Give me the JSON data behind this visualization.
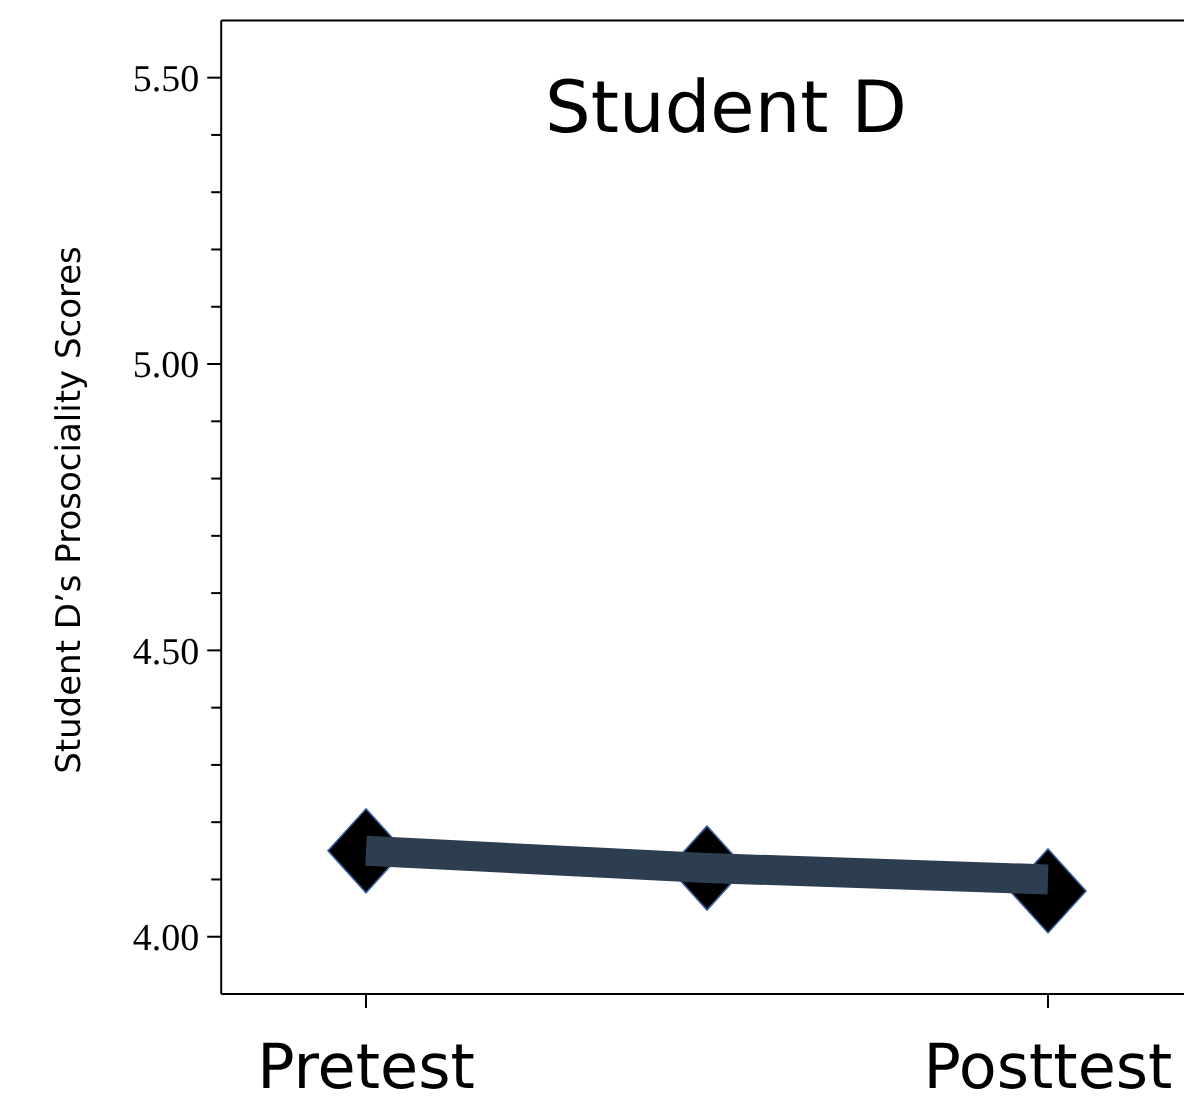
{
  "chart_data": {
    "type": "scatter",
    "title": "Student D",
    "ylabel": "Student D’s Prosociality Scores",
    "categories": [
      "Pretest",
      null,
      "Posttest"
    ],
    "ylim": [
      3.9,
      5.6
    ],
    "yticks": [
      {
        "value": 4.0,
        "label": "4.00"
      },
      {
        "value": 4.1,
        "label": null
      },
      {
        "value": 4.2,
        "label": null
      },
      {
        "value": 4.3,
        "label": null
      },
      {
        "value": 4.4,
        "label": null
      },
      {
        "value": 4.5,
        "label": "4.50"
      },
      {
        "value": 4.6,
        "label": null
      },
      {
        "value": 4.7,
        "label": null
      },
      {
        "value": 4.8,
        "label": null
      },
      {
        "value": 4.9,
        "label": null
      },
      {
        "value": 5.0,
        "label": "5.00"
      },
      {
        "value": 5.1,
        "label": null
      },
      {
        "value": 5.2,
        "label": null
      },
      {
        "value": 5.3,
        "label": null
      },
      {
        "value": 5.4,
        "label": null
      },
      {
        "value": 5.5,
        "label": "5.50"
      }
    ],
    "series": [
      {
        "color": "#000000",
        "marker": "diamond",
        "values": [
          4.15,
          4.12,
          4.08
        ]
      },
      {
        "type": "line",
        "color": "#2c3e50",
        "values": [
          4.15,
          4.12,
          4.1
        ]
      }
    ]
  }
}
